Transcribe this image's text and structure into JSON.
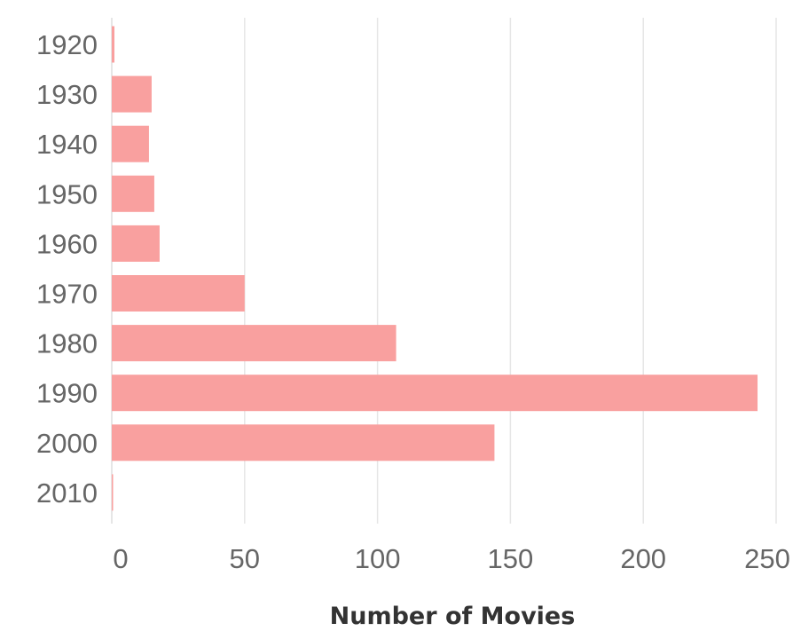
{
  "chart_data": {
    "type": "bar",
    "orientation": "horizontal",
    "categories": [
      "1920",
      "1930",
      "1940",
      "1950",
      "1960",
      "1970",
      "1980",
      "1990",
      "2000",
      "2010"
    ],
    "series": [
      {
        "values": [
          1,
          15,
          14,
          16,
          18,
          50,
          107,
          243,
          144,
          0
        ]
      }
    ],
    "xlabel": "Number of Movies",
    "ylabel": "",
    "xlim": [
      0,
      250
    ],
    "xticks": [
      "0",
      "50",
      "100",
      "150",
      "200",
      "250"
    ],
    "grid": true,
    "bar_color": "#f9a09f"
  }
}
